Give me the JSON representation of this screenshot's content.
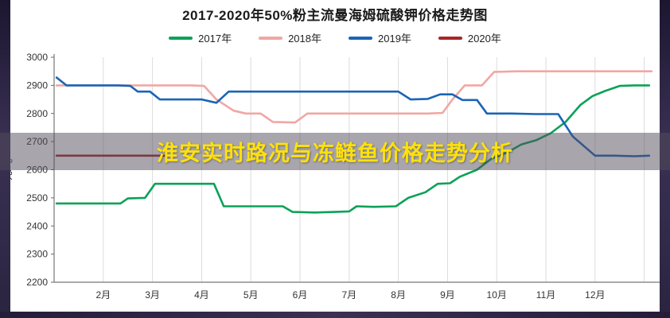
{
  "page": {
    "banner_text": "淮安实时路况与冻鲢鱼价格走势分析",
    "banner_text_color": "#ffe10a",
    "border_color": "#3a3153"
  },
  "chart_data": {
    "type": "line",
    "title": "2017-2020年50%粉主流曼海姆硫酸钾价格走势图",
    "ylabel": "元/吨",
    "ylim": [
      2200,
      3000
    ],
    "xlim": [
      1.0,
      13.2
    ],
    "y_ticks": [
      2200,
      2300,
      2400,
      2500,
      2600,
      2700,
      2800,
      2900,
      3000
    ],
    "x_tick_labels": [
      "2月",
      "3月",
      "4月",
      "5月",
      "6月",
      "7月",
      "8月",
      "9月",
      "10月",
      "11月",
      "12月"
    ],
    "x_tick_positions": [
      2,
      3,
      4,
      5,
      6,
      7,
      8,
      9,
      10,
      11,
      12
    ],
    "grid_positions": [
      2,
      3,
      4,
      5,
      6,
      7,
      8,
      9,
      10,
      11,
      12,
      13
    ],
    "grid": "vertical",
    "legend_position": "top",
    "series": [
      {
        "name": "2017年",
        "color": "#0ca158",
        "points": [
          [
            1.05,
            2480
          ],
          [
            1.6,
            2480
          ],
          [
            2.1,
            2480
          ],
          [
            2.35,
            2480
          ],
          [
            2.5,
            2498
          ],
          [
            2.85,
            2500
          ],
          [
            3.05,
            2550
          ],
          [
            3.5,
            2550
          ],
          [
            3.9,
            2550
          ],
          [
            4.25,
            2550
          ],
          [
            4.45,
            2470
          ],
          [
            4.9,
            2470
          ],
          [
            5.3,
            2470
          ],
          [
            5.65,
            2470
          ],
          [
            5.85,
            2450
          ],
          [
            6.3,
            2448
          ],
          [
            6.7,
            2450
          ],
          [
            7.0,
            2452
          ],
          [
            7.15,
            2470
          ],
          [
            7.5,
            2468
          ],
          [
            7.95,
            2470
          ],
          [
            8.2,
            2500
          ],
          [
            8.55,
            2520
          ],
          [
            8.8,
            2550
          ],
          [
            9.05,
            2552
          ],
          [
            9.25,
            2575
          ],
          [
            9.6,
            2600
          ],
          [
            9.9,
            2640
          ],
          [
            10.2,
            2660
          ],
          [
            10.5,
            2690
          ],
          [
            10.8,
            2705
          ],
          [
            11.1,
            2730
          ],
          [
            11.4,
            2770
          ],
          [
            11.7,
            2830
          ],
          [
            11.95,
            2862
          ],
          [
            12.2,
            2880
          ],
          [
            12.5,
            2898
          ],
          [
            12.8,
            2900
          ],
          [
            13.1,
            2900
          ]
        ]
      },
      {
        "name": "2018年",
        "color": "#f0a7a3",
        "points": [
          [
            1.05,
            2900
          ],
          [
            1.7,
            2900
          ],
          [
            2.4,
            2900
          ],
          [
            3.1,
            2900
          ],
          [
            3.8,
            2900
          ],
          [
            4.05,
            2898
          ],
          [
            4.3,
            2850
          ],
          [
            4.65,
            2810
          ],
          [
            4.9,
            2800
          ],
          [
            5.2,
            2800
          ],
          [
            5.45,
            2770
          ],
          [
            5.9,
            2768
          ],
          [
            6.15,
            2800
          ],
          [
            6.6,
            2800
          ],
          [
            7.1,
            2800
          ],
          [
            7.6,
            2800
          ],
          [
            8.1,
            2800
          ],
          [
            8.6,
            2800
          ],
          [
            8.9,
            2802
          ],
          [
            9.1,
            2850
          ],
          [
            9.35,
            2900
          ],
          [
            9.7,
            2900
          ],
          [
            9.95,
            2948
          ],
          [
            10.4,
            2950
          ],
          [
            11.0,
            2950
          ],
          [
            11.6,
            2950
          ],
          [
            12.3,
            2950
          ],
          [
            13.15,
            2950
          ]
        ]
      },
      {
        "name": "2019年",
        "color": "#1a64b7",
        "points": [
          [
            1.05,
            2928
          ],
          [
            1.25,
            2900
          ],
          [
            1.8,
            2900
          ],
          [
            2.3,
            2900
          ],
          [
            2.55,
            2898
          ],
          [
            2.7,
            2878
          ],
          [
            2.95,
            2878
          ],
          [
            3.15,
            2850
          ],
          [
            3.6,
            2850
          ],
          [
            4.0,
            2850
          ],
          [
            4.3,
            2838
          ],
          [
            4.55,
            2878
          ],
          [
            5.0,
            2878
          ],
          [
            5.5,
            2878
          ],
          [
            6.0,
            2878
          ],
          [
            6.5,
            2878
          ],
          [
            7.0,
            2878
          ],
          [
            7.5,
            2878
          ],
          [
            8.0,
            2878
          ],
          [
            8.25,
            2850
          ],
          [
            8.6,
            2852
          ],
          [
            8.85,
            2868
          ],
          [
            9.1,
            2868
          ],
          [
            9.3,
            2848
          ],
          [
            9.6,
            2848
          ],
          [
            9.8,
            2800
          ],
          [
            10.3,
            2800
          ],
          [
            10.8,
            2798
          ],
          [
            11.25,
            2798
          ],
          [
            11.55,
            2718
          ],
          [
            11.8,
            2680
          ],
          [
            12.0,
            2650
          ],
          [
            12.4,
            2650
          ],
          [
            12.8,
            2648
          ],
          [
            13.1,
            2650
          ]
        ]
      },
      {
        "name": "2020年",
        "color": "#a92427",
        "points": [
          [
            1.05,
            2650
          ],
          [
            1.5,
            2650
          ],
          [
            2.0,
            2650
          ],
          [
            2.5,
            2650
          ],
          [
            3.0,
            2650
          ],
          [
            3.4,
            2650
          ]
        ]
      }
    ]
  }
}
